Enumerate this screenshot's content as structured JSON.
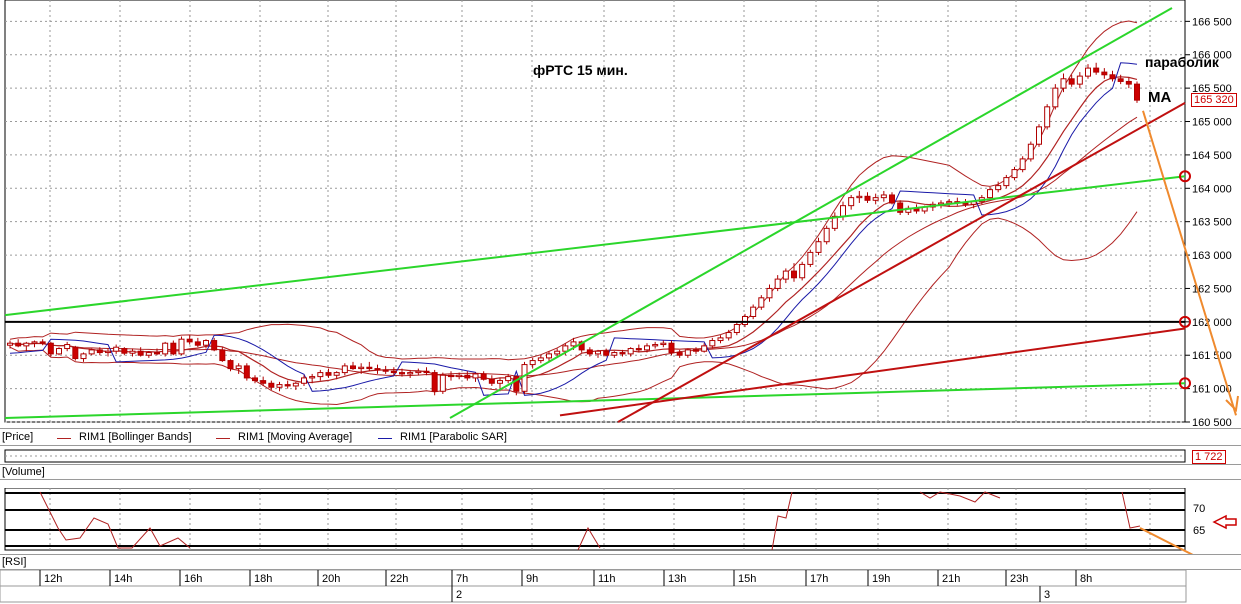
{
  "chart_data": {
    "type": "candlestick",
    "title": "фРТС 15 мин.",
    "y_axis": {
      "ticks": [
        "166 500",
        "166 000",
        "165 500",
        "165 000",
        "164 500",
        "164 000",
        "163 500",
        "163 000",
        "162 500",
        "162 000",
        "161 500",
        "161 000",
        "160 500"
      ],
      "ylim": [
        160500,
        166700
      ]
    },
    "current_price_label": "165 320",
    "x_axis": {
      "ticks": [
        "12h",
        "14h",
        "16h",
        "18h",
        "20h",
        "22h",
        "7h",
        "9h",
        "11h",
        "13h",
        "15h",
        "17h",
        "19h",
        "21h",
        "23h",
        "8h"
      ],
      "day_markers": [
        "2",
        "3"
      ]
    },
    "legend": [
      "[Price]",
      "RIM1 [Bollinger Bands]",
      "RIM1 [Moving Average]",
      "RIM1 [Parabolic SAR]"
    ],
    "annotations": [
      "параболик",
      "МА"
    ],
    "volume": {
      "label": "[Volume]",
      "value": "1 722"
    },
    "rsi": {
      "label": "[RSI]",
      "ticks": [
        "70",
        "65"
      ]
    },
    "candles": [
      [
        161650,
        161720,
        161600,
        161680
      ],
      [
        161680,
        161740,
        161620,
        161640
      ],
      [
        161640,
        161700,
        161560,
        161680
      ],
      [
        161680,
        161720,
        161620,
        161700
      ],
      [
        161700,
        161740,
        161650,
        161680
      ],
      [
        161680,
        161700,
        161480,
        161520
      ],
      [
        161520,
        161620,
        161500,
        161600
      ],
      [
        161600,
        161700,
        161560,
        161660
      ],
      [
        161620,
        161640,
        161420,
        161450
      ],
      [
        161450,
        161540,
        161400,
        161520
      ],
      [
        161520,
        161600,
        161500,
        161580
      ],
      [
        161580,
        161620,
        161500,
        161540
      ],
      [
        161540,
        161600,
        161480,
        161560
      ],
      [
        161560,
        161660,
        161520,
        161620
      ],
      [
        161600,
        161620,
        161500,
        161530
      ],
      [
        161530,
        161600,
        161480,
        161560
      ],
      [
        161560,
        161620,
        161480,
        161500
      ],
      [
        161500,
        161560,
        161460,
        161540
      ],
      [
        161540,
        161600,
        161500,
        161520
      ],
      [
        161520,
        161700,
        161480,
        161680
      ],
      [
        161680,
        161720,
        161500,
        161520
      ],
      [
        161520,
        161780,
        161500,
        161740
      ],
      [
        161740,
        161800,
        161660,
        161700
      ],
      [
        161700,
        161760,
        161620,
        161650
      ],
      [
        161650,
        161740,
        161600,
        161720
      ],
      [
        161720,
        161760,
        161560,
        161580
      ],
      [
        161580,
        161620,
        161400,
        161420
      ],
      [
        161420,
        161440,
        161260,
        161300
      ],
      [
        161300,
        161380,
        161220,
        161340
      ],
      [
        161340,
        161380,
        161120,
        161160
      ],
      [
        161160,
        161200,
        161080,
        161120
      ],
      [
        161120,
        161180,
        161040,
        161080
      ],
      [
        161080,
        161120,
        160980,
        161020
      ],
      [
        161020,
        161100,
        160960,
        161060
      ],
      [
        161060,
        161120,
        161000,
        161040
      ],
      [
        161040,
        161100,
        160980,
        161080
      ],
      [
        161080,
        161200,
        161040,
        161160
      ],
      [
        161160,
        161220,
        161080,
        161180
      ],
      [
        161180,
        161280,
        161120,
        161240
      ],
      [
        161240,
        161300,
        161160,
        161200
      ],
      [
        161200,
        161260,
        161140,
        161240
      ],
      [
        161240,
        161380,
        161200,
        161340
      ],
      [
        161340,
        161400,
        161280,
        161300
      ],
      [
        161300,
        161380,
        161220,
        161320
      ],
      [
        161320,
        161400,
        161260,
        161300
      ],
      [
        161300,
        161360,
        161220,
        161280
      ],
      [
        161280,
        161340,
        161220,
        161260
      ],
      [
        161260,
        161320,
        161200,
        161240
      ],
      [
        161240,
        161300,
        161180,
        161220
      ],
      [
        161220,
        161280,
        161160,
        161240
      ],
      [
        161240,
        161300,
        161200,
        161260
      ],
      [
        161260,
        161320,
        161200,
        161240
      ],
      [
        161240,
        161280,
        160900,
        160960
      ],
      [
        160960,
        161240,
        160920,
        161200
      ],
      [
        161200,
        161260,
        161120,
        161180
      ],
      [
        161180,
        161240,
        161140,
        161200
      ],
      [
        161200,
        161260,
        161120,
        161160
      ],
      [
        161160,
        161240,
        161100,
        161220
      ],
      [
        161220,
        161260,
        161120,
        161140
      ],
      [
        161140,
        161200,
        161040,
        161080
      ],
      [
        161080,
        161160,
        160960,
        161120
      ],
      [
        161120,
        161220,
        161080,
        161180
      ],
      [
        161180,
        161200,
        160900,
        160960
      ],
      [
        160960,
        161400,
        160920,
        161360
      ],
      [
        161360,
        161460,
        161300,
        161420
      ],
      [
        161420,
        161500,
        161380,
        161460
      ],
      [
        161460,
        161560,
        161400,
        161520
      ],
      [
        161520,
        161600,
        161460,
        161560
      ],
      [
        161560,
        161680,
        161500,
        161640
      ],
      [
        161640,
        161760,
        161580,
        161700
      ],
      [
        161700,
        161720,
        161540,
        161580
      ],
      [
        161580,
        161620,
        161480,
        161520
      ],
      [
        161520,
        161580,
        161460,
        161560
      ],
      [
        161560,
        161600,
        161480,
        161500
      ],
      [
        161500,
        161560,
        161460,
        161540
      ],
      [
        161540,
        161580,
        161480,
        161520
      ],
      [
        161520,
        161620,
        161480,
        161600
      ],
      [
        161600,
        161660,
        161540,
        161580
      ],
      [
        161580,
        161680,
        161540,
        161640
      ],
      [
        161640,
        161700,
        161600,
        161660
      ],
      [
        161660,
        161720,
        161620,
        161680
      ],
      [
        161680,
        161720,
        161500,
        161540
      ],
      [
        161540,
        161580,
        161460,
        161500
      ],
      [
        161500,
        161600,
        161460,
        161580
      ],
      [
        161580,
        161620,
        161520,
        161560
      ],
      [
        161560,
        161680,
        161540,
        161640
      ],
      [
        161640,
        161760,
        161600,
        161720
      ],
      [
        161720,
        161800,
        161680,
        161760
      ],
      [
        161760,
        161880,
        161720,
        161840
      ],
      [
        161840,
        162000,
        161800,
        161960
      ],
      [
        161960,
        162120,
        161920,
        162080
      ],
      [
        162080,
        162260,
        162040,
        162220
      ],
      [
        162220,
        162400,
        162180,
        162360
      ],
      [
        162360,
        162560,
        162300,
        162500
      ],
      [
        162500,
        162700,
        162460,
        162640
      ],
      [
        162640,
        162800,
        162580,
        162760
      ],
      [
        162760,
        162880,
        162600,
        162660
      ],
      [
        162660,
        162900,
        162620,
        162860
      ],
      [
        162860,
        163080,
        162820,
        163040
      ],
      [
        163040,
        163260,
        163000,
        163200
      ],
      [
        163200,
        163440,
        163160,
        163400
      ],
      [
        163400,
        163640,
        163360,
        163580
      ],
      [
        163580,
        163800,
        163520,
        163740
      ],
      [
        163740,
        163900,
        163680,
        163860
      ],
      [
        163860,
        163960,
        163780,
        163880
      ],
      [
        163880,
        163940,
        163780,
        163820
      ],
      [
        163820,
        163920,
        163760,
        163860
      ],
      [
        163860,
        163960,
        163800,
        163900
      ],
      [
        163900,
        163940,
        163760,
        163780
      ],
      [
        163780,
        163820,
        163600,
        163640
      ],
      [
        163640,
        163740,
        163600,
        163700
      ],
      [
        163700,
        163760,
        163620,
        163660
      ],
      [
        163660,
        163740,
        163620,
        163720
      ],
      [
        163720,
        163800,
        163660,
        163760
      ],
      [
        163760,
        163820,
        163700,
        163780
      ],
      [
        163780,
        163840,
        163720,
        163800
      ],
      [
        163800,
        163860,
        163740,
        163780
      ],
      [
        163780,
        163840,
        163720,
        163760
      ],
      [
        163760,
        163820,
        163700,
        163800
      ],
      [
        163800,
        163900,
        163760,
        163860
      ],
      [
        163860,
        164020,
        163820,
        163980
      ],
      [
        163980,
        164100,
        163940,
        164040
      ],
      [
        164040,
        164200,
        164000,
        164160
      ],
      [
        164160,
        164320,
        164120,
        164280
      ],
      [
        164280,
        164480,
        164240,
        164440
      ],
      [
        164440,
        164700,
        164400,
        164660
      ],
      [
        164660,
        164960,
        164620,
        164920
      ],
      [
        164920,
        165260,
        164880,
        165220
      ],
      [
        165220,
        165560,
        165180,
        165500
      ],
      [
        165500,
        165720,
        165440,
        165640
      ],
      [
        165640,
        165700,
        165520,
        165560
      ],
      [
        165560,
        165740,
        165500,
        165680
      ],
      [
        165680,
        165860,
        165640,
        165800
      ],
      [
        165800,
        165880,
        165700,
        165740
      ],
      [
        165740,
        165800,
        165640,
        165700
      ],
      [
        165700,
        165760,
        165600,
        165640
      ],
      [
        165640,
        165700,
        165560,
        165600
      ],
      [
        165600,
        165660,
        165500,
        165560
      ],
      [
        165560,
        165600,
        165280,
        165320
      ]
    ]
  },
  "colors": {
    "bull": "#cc0000",
    "bear": "#cc0000",
    "support_green": "#2bd62b",
    "trend_red": "#c01010",
    "forecast_orange": "#ef8a2e",
    "sar_blue": "#1a1aa8",
    "bb_red": "#b02222"
  }
}
